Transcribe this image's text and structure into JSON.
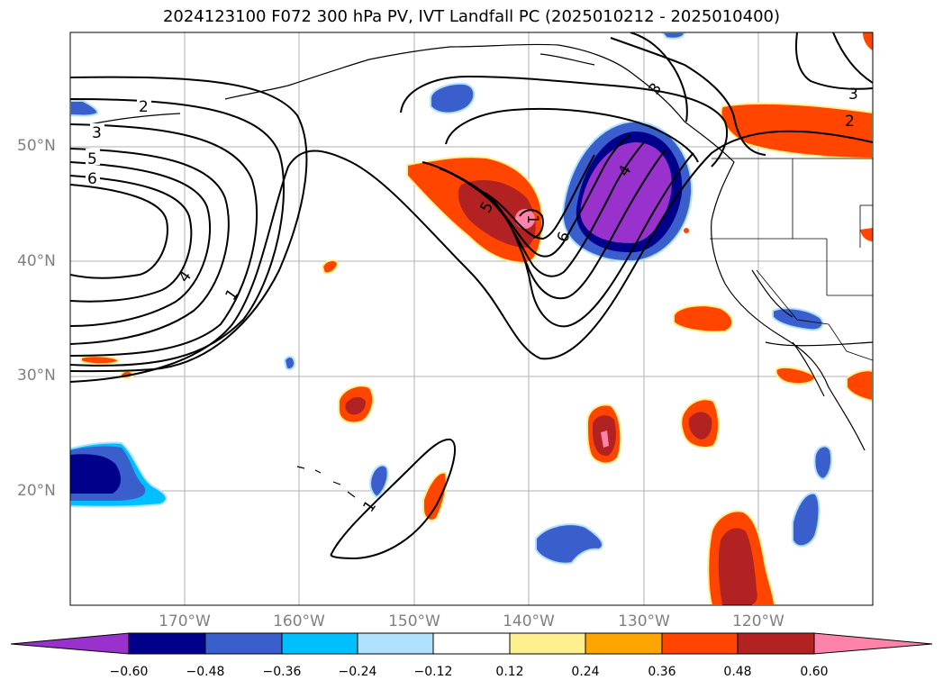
{
  "title": "2024123100 F072 300 hPa PV, IVT Landfall PC (2025010212 - 2025010400)",
  "map": {
    "lat_labels": [
      "50°N",
      "40°N",
      "30°N",
      "20°N"
    ],
    "lon_labels": [
      "170°W",
      "160°W",
      "150°W",
      "140°W",
      "130°W",
      "120°W"
    ],
    "contour_labels": [
      "2",
      "3",
      "5",
      "6",
      "4",
      "1",
      "5",
      "1",
      "6",
      "4",
      "3",
      "2",
      "3",
      "1"
    ]
  },
  "colorbar": {
    "ticks": [
      "−0.60",
      "−0.48",
      "−0.36",
      "−0.24",
      "−0.12",
      "0.12",
      "0.24",
      "0.36",
      "0.48",
      "0.60"
    ],
    "colors": [
      "#9932cc",
      "#00008b",
      "#3a5fcd",
      "#00bfff",
      "#b0e2ff",
      "#ffffff",
      "#fff08f",
      "#ffa500",
      "#ff4500",
      "#b22222",
      "#ff82ab"
    ]
  }
}
